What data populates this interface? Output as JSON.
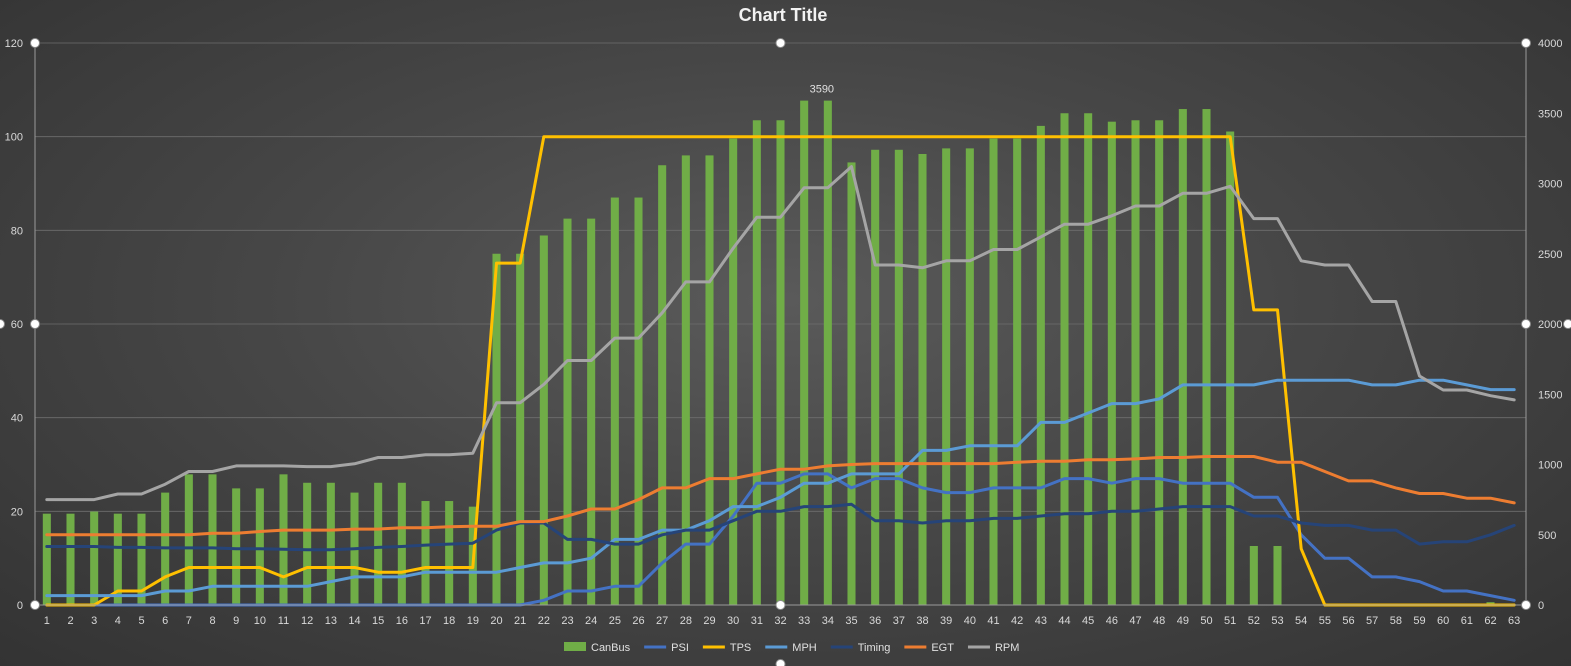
{
  "chart_data": {
    "type": "bar",
    "title": "Chart Title",
    "x": [
      1,
      2,
      3,
      4,
      5,
      6,
      7,
      8,
      9,
      10,
      11,
      12,
      13,
      14,
      15,
      16,
      17,
      18,
      19,
      20,
      21,
      22,
      23,
      24,
      25,
      26,
      27,
      28,
      29,
      30,
      31,
      32,
      33,
      34,
      35,
      36,
      37,
      38,
      39,
      40,
      41,
      42,
      43,
      44,
      45,
      46,
      47,
      48,
      49,
      50,
      51,
      52,
      53,
      54,
      55,
      56,
      57,
      58,
      59,
      60,
      61,
      62,
      63
    ],
    "ylim": [
      0,
      120
    ],
    "yticks": [
      0,
      20,
      40,
      60,
      80,
      100,
      120
    ],
    "y2lim": [
      0,
      4000
    ],
    "y2ticks": [
      0,
      500,
      1000,
      1500,
      2000,
      2500,
      3000,
      3500,
      4000
    ],
    "grid": true,
    "legend_position": "bottom",
    "series": [
      {
        "name": "CanBus",
        "type": "bar",
        "axis": "secondary",
        "color": "#70ad47",
        "values": [
          650,
          650,
          665,
          650,
          650,
          800,
          930,
          930,
          830,
          830,
          930,
          870,
          870,
          800,
          870,
          870,
          740,
          740,
          700,
          2500,
          2500,
          2630,
          2750,
          2750,
          2900,
          2900,
          3130,
          3200,
          3200,
          3320,
          3450,
          3450,
          3590,
          3590,
          3150,
          3240,
          3240,
          3210,
          3250,
          3250,
          3320,
          3320,
          3410,
          3500,
          3500,
          3440,
          3450,
          3450,
          3530,
          3530,
          3370,
          420,
          420,
          0,
          0,
          0,
          0,
          0,
          0,
          10,
          10,
          20,
          0
        ]
      },
      {
        "name": "PSI",
        "type": "line",
        "axis": "primary",
        "color": "#4472c4",
        "values": [
          0,
          0,
          0,
          0,
          0,
          0,
          0,
          0,
          0,
          0,
          0,
          0,
          0,
          0,
          0,
          0,
          0,
          0,
          0,
          0,
          0,
          1,
          3,
          3,
          4,
          4,
          9,
          13,
          13,
          19,
          26,
          26,
          28,
          28,
          25,
          27,
          27,
          25,
          24,
          24,
          25,
          25,
          25,
          27,
          27,
          26,
          27,
          27,
          26,
          26,
          26,
          23,
          23,
          15,
          10,
          10,
          6,
          6,
          5,
          3,
          3,
          2,
          1
        ]
      },
      {
        "name": "TPS",
        "type": "line",
        "axis": "primary",
        "color": "#ffc000",
        "values": [
          0,
          0,
          0,
          3,
          3,
          6,
          8,
          8,
          8,
          8,
          6,
          8,
          8,
          8,
          7,
          7,
          8,
          8,
          8,
          73,
          73,
          100,
          100,
          100,
          100,
          100,
          100,
          100,
          100,
          100,
          100,
          100,
          100,
          100,
          100,
          100,
          100,
          100,
          100,
          100,
          100,
          100,
          100,
          100,
          100,
          100,
          100,
          100,
          100,
          100,
          100,
          63,
          63,
          12,
          0,
          0,
          0,
          0,
          0,
          0,
          0,
          0,
          0
        ]
      },
      {
        "name": "MPH",
        "type": "line",
        "axis": "primary",
        "color": "#5b9bd5",
        "values": [
          2,
          2,
          2,
          2,
          2,
          3,
          3,
          4,
          4,
          4,
          4,
          4,
          5,
          6,
          6,
          6,
          7,
          7,
          7,
          7,
          8,
          9,
          9,
          10,
          14,
          14,
          16,
          16,
          18,
          21,
          21,
          23,
          26,
          26,
          28,
          28,
          28,
          33,
          33,
          34,
          34,
          34,
          39,
          39,
          41,
          43,
          43,
          44,
          47,
          47,
          47,
          47,
          48,
          48,
          48,
          48,
          47,
          47,
          48,
          48,
          47,
          46,
          46
        ]
      },
      {
        "name": "Timing",
        "type": "line",
        "axis": "primary",
        "color": "#264478",
        "values": [
          12.5,
          12.5,
          12.5,
          12.3,
          12.3,
          12.2,
          12.2,
          12.2,
          12,
          12,
          11.9,
          11.8,
          11.8,
          12,
          12.3,
          12.5,
          12.8,
          13,
          13.2,
          16,
          17.5,
          17.5,
          14,
          14,
          13,
          13,
          15,
          16,
          16,
          18,
          20,
          20,
          21,
          21,
          21.5,
          18,
          18,
          17.5,
          18,
          18,
          18.5,
          18.5,
          19,
          19.5,
          19.5,
          20,
          20,
          20.5,
          21,
          21,
          21,
          19,
          19,
          17.5,
          17,
          17,
          16,
          16,
          13,
          13.5,
          13.5,
          15,
          17
        ]
      },
      {
        "name": "EGT",
        "type": "line",
        "axis": "primary",
        "color": "#ed7d31",
        "values": [
          15,
          15,
          15,
          15,
          15,
          15,
          15,
          15.3,
          15.3,
          15.7,
          16,
          16,
          16,
          16.2,
          16.2,
          16.5,
          16.5,
          16.7,
          16.8,
          16.8,
          17.8,
          17.8,
          19,
          20.5,
          20.5,
          22.5,
          25,
          25,
          27,
          27,
          28,
          29,
          29,
          29.7,
          30,
          30.2,
          30.2,
          30.2,
          30.2,
          30.2,
          30.2,
          30.5,
          30.7,
          30.7,
          31,
          31,
          31.2,
          31.5,
          31.5,
          31.7,
          31.7,
          31.7,
          30.5,
          30.5,
          28.5,
          26.5,
          26.5,
          25,
          23.8,
          23.8,
          22.8,
          22.8,
          21.8
        ]
      },
      {
        "name": "RPM",
        "type": "line",
        "axis": "secondary",
        "color": "#a5a5a5",
        "values": [
          750,
          750,
          750,
          790,
          790,
          860,
          950,
          950,
          990,
          990,
          990,
          985,
          985,
          1005,
          1050,
          1050,
          1070,
          1070,
          1080,
          1440,
          1440,
          1570,
          1740,
          1740,
          1900,
          1900,
          2080,
          2300,
          2300,
          2540,
          2760,
          2760,
          2970,
          2970,
          3120,
          2420,
          2420,
          2400,
          2450,
          2450,
          2530,
          2530,
          2620,
          2710,
          2710,
          2770,
          2840,
          2840,
          2930,
          2930,
          2980,
          2750,
          2750,
          2450,
          2420,
          2420,
          2160,
          2160,
          1630,
          1530,
          1530,
          1490,
          1460
        ]
      }
    ],
    "data_labels": [
      {
        "series": "CanBus",
        "x": 34,
        "text": "3590"
      }
    ]
  }
}
